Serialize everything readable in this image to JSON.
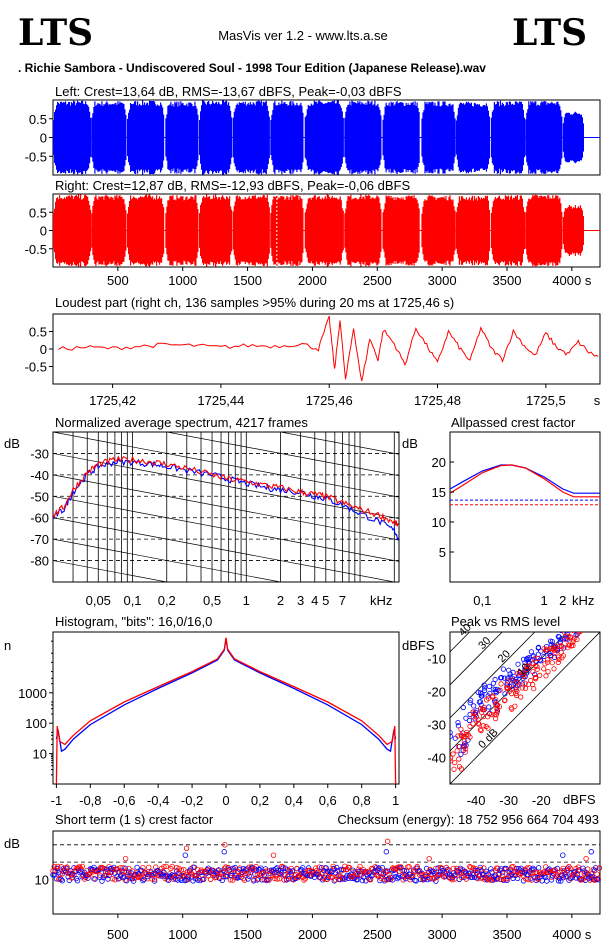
{
  "header": {
    "logo_left": "LTS",
    "logo_right": "LTS",
    "app_title": "MasVis ver 1.2 - www.lts.a.se",
    "file_name": ". Richie Sambora - Undiscovered Soul - 1998 Tour Edition (Japanese Release).wav"
  },
  "colors": {
    "left": "#0000ff",
    "right": "#ff0000",
    "axis": "#000000",
    "grid": "#000000",
    "bg": "#ffffff"
  },
  "chart_data": [
    {
      "id": "left_waveform",
      "type": "area",
      "title": "Left: Crest=13,64 dB, RMS=-13,67 dBFS, Peak=-0,03 dBFS",
      "y_ticks": [
        "0.5",
        "0",
        "-0.5"
      ],
      "ylim": [
        -1,
        1
      ],
      "xlim": [
        0,
        4217
      ],
      "color": "#0000ff",
      "song_segments_s": [
        [
          5,
          292
        ],
        [
          300,
          565
        ],
        [
          575,
          858
        ],
        [
          870,
          1120
        ],
        [
          1130,
          1378
        ],
        [
          1390,
          1672
        ],
        [
          1680,
          1934
        ],
        [
          1945,
          2238
        ],
        [
          2250,
          2530
        ],
        [
          2545,
          2830
        ],
        [
          2845,
          3102
        ],
        [
          3110,
          3370
        ],
        [
          3380,
          3635
        ],
        [
          3645,
          3925
        ],
        [
          3935,
          4090
        ]
      ],
      "segment_peak": [
        0.99,
        0.98,
        0.99,
        0.97,
        0.99,
        0.99,
        0.98,
        0.99,
        0.99,
        0.98,
        0.97,
        0.96,
        0.98,
        0.99,
        0.7
      ]
    },
    {
      "id": "right_waveform",
      "type": "area",
      "title": "Right: Crest=12,87 dB, RMS=-12,93 dBFS, Peak=-0,06 dBFS",
      "y_ticks": [
        "0.5",
        "0",
        "-0.5"
      ],
      "ylim": [
        -1,
        1
      ],
      "xlim": [
        0,
        4217
      ],
      "color": "#ff0000",
      "marker_s": 1725.46,
      "x_ticks": [
        "500",
        "1000",
        "1500",
        "2000",
        "2500",
        "3000",
        "3500",
        "4000 s"
      ],
      "x_tick_values": [
        500,
        1000,
        1500,
        2000,
        2500,
        3000,
        3500,
        4000
      ]
    },
    {
      "id": "loudest_part",
      "type": "line",
      "title": "Loudest part (right ch, 136 samples >95% during 20 ms at 1725,46 s)",
      "y_ticks": [
        "0.5",
        "0",
        "-0.5"
      ],
      "ylim": [
        -1,
        1
      ],
      "xlim": [
        1725.409,
        1725.51
      ],
      "x_ticks": [
        "1725,42",
        "1725,44",
        "1725,46",
        "1725,48",
        "1725,5",
        "s"
      ],
      "x_tick_values": [
        1725.42,
        1725.44,
        1725.46,
        1725.48,
        1725.5
      ],
      "color": "#ff0000",
      "x": [
        1725.41,
        1725.415,
        1725.42,
        1725.425,
        1725.43,
        1725.435,
        1725.44,
        1725.445,
        1725.45,
        1725.455,
        1725.458,
        1725.46,
        1725.461,
        1725.462,
        1725.463,
        1725.4645,
        1725.466,
        1725.4675,
        1725.469,
        1725.47,
        1725.472,
        1725.474,
        1725.476,
        1725.478,
        1725.48,
        1725.482,
        1725.484,
        1725.486,
        1725.488,
        1725.49,
        1725.492,
        1725.494,
        1725.496,
        1725.498,
        1725.5,
        1725.502,
        1725.504,
        1725.506,
        1725.508,
        1725.51
      ],
      "y": [
        0.0,
        0.05,
        0.02,
        0.08,
        0.12,
        0.1,
        0.05,
        0.1,
        0.08,
        0.15,
        0.0,
        0.9,
        -0.6,
        0.85,
        -0.9,
        0.6,
        -0.95,
        0.3,
        -0.3,
        0.55,
        0.15,
        -0.45,
        0.6,
        0.1,
        -0.4,
        0.5,
        0.05,
        -0.35,
        0.6,
        0.0,
        -0.3,
        0.5,
        0.1,
        -0.2,
        0.45,
        0.05,
        -0.15,
        0.2,
        -0.1,
        -0.25
      ]
    },
    {
      "id": "avg_spectrum",
      "type": "line",
      "title": "Normalized average spectrum, 4217 frames",
      "ylabel": "dB",
      "xlabel": "kHz",
      "y_ticks": [
        "-30",
        "-40",
        "-50",
        "-60",
        "-70",
        "-80"
      ],
      "y_tick_values": [
        -30,
        -40,
        -50,
        -60,
        -70,
        -80
      ],
      "ylim": [
        -90,
        -20
      ],
      "x_scale": "log",
      "xlim": [
        0.02,
        22
      ],
      "x_ticks": [
        "0,05",
        "0,1",
        "0,2",
        "0,5",
        "1",
        "2",
        "3",
        "4",
        "5",
        "7"
      ],
      "x_tick_values": [
        0.05,
        0.1,
        0.2,
        0.5,
        1,
        2,
        3,
        4,
        5,
        7
      ],
      "series": [
        {
          "color": "#0000ff",
          "x": [
            0.02,
            0.025,
            0.03,
            0.04,
            0.05,
            0.07,
            0.1,
            0.15,
            0.2,
            0.3,
            0.5,
            0.7,
            1,
            1.5,
            2,
            3,
            4,
            5,
            7,
            10,
            15,
            20,
            22
          ],
          "y": [
            -60,
            -56,
            -48,
            -40,
            -36,
            -34,
            -34,
            -35,
            -36,
            -38,
            -40,
            -42,
            -44,
            -46,
            -47,
            -48,
            -50,
            -51,
            -54,
            -58,
            -62,
            -66,
            -70
          ]
        },
        {
          "color": "#ff0000",
          "x": [
            0.02,
            0.025,
            0.03,
            0.04,
            0.05,
            0.07,
            0.1,
            0.15,
            0.2,
            0.3,
            0.5,
            0.7,
            1,
            1.5,
            2,
            3,
            4,
            5,
            7,
            10,
            15,
            20,
            22
          ],
          "y": [
            -59,
            -55,
            -47,
            -39,
            -35,
            -33,
            -33,
            -34,
            -35,
            -37,
            -40,
            -42,
            -43,
            -45,
            -46,
            -48,
            -49,
            -50,
            -53,
            -56,
            -59,
            -62,
            -64
          ]
        }
      ]
    },
    {
      "id": "allpassed_crest",
      "type": "line",
      "title": "Allpassed crest factor",
      "ylabel": "dB",
      "xlabel": "kHz",
      "y_ticks": [
        "20",
        "15",
        "10",
        "5"
      ],
      "y_tick_values": [
        20,
        15,
        10,
        5
      ],
      "ylim": [
        0,
        25
      ],
      "x_scale": "log",
      "xlim": [
        0.03,
        8
      ],
      "x_ticks": [
        "0,1",
        "1",
        "2"
      ],
      "x_tick_values": [
        0.1,
        1,
        2
      ],
      "reference_lines": [
        {
          "color": "#0000ff",
          "value": 13.64
        },
        {
          "color": "#ff0000",
          "value": 12.87
        }
      ],
      "series": [
        {
          "color": "#0000ff",
          "x": [
            0.03,
            0.05,
            0.1,
            0.2,
            0.3,
            0.5,
            1,
            2,
            3,
            5,
            8
          ],
          "y": [
            15.5,
            16.8,
            18.5,
            19.5,
            19.5,
            19,
            17.5,
            15.5,
            14.8,
            14.8,
            14.8
          ]
        },
        {
          "color": "#ff0000",
          "x": [
            0.03,
            0.05,
            0.1,
            0.2,
            0.3,
            0.5,
            1,
            2,
            3,
            5,
            8
          ],
          "y": [
            14.8,
            16.2,
            18.2,
            19.4,
            19.5,
            19,
            17.2,
            15,
            14.2,
            14.2,
            14.2
          ]
        }
      ]
    },
    {
      "id": "histogram",
      "type": "line",
      "title": "Histogram, \"bits\": 16,0/16,0",
      "ylabel": "n",
      "y_scale": "log",
      "y_ticks": [
        "1000",
        "100",
        "10"
      ],
      "y_tick_values": [
        1000,
        100,
        10
      ],
      "ylim": [
        1,
        100000
      ],
      "xlim": [
        -1.02,
        1.02
      ],
      "x_ticks": [
        "-1",
        "-0,8",
        "-0,6",
        "-0,4",
        "-0,2",
        "0",
        "0,2",
        "0,4",
        "0,6",
        "0,8",
        "1"
      ],
      "x_tick_values": [
        -1,
        -0.8,
        -0.6,
        -0.4,
        -0.2,
        0,
        0.2,
        0.4,
        0.6,
        0.8,
        1
      ],
      "series": [
        {
          "color": "#0000ff",
          "x": [
            -1,
            -0.99,
            -0.97,
            -0.95,
            -0.9,
            -0.8,
            -0.6,
            -0.4,
            -0.2,
            -0.05,
            -0.01,
            0,
            0.01,
            0.05,
            0.2,
            0.4,
            0.6,
            0.8,
            0.9,
            0.95,
            0.97,
            0.99,
            1
          ],
          "y": [
            30,
            60,
            12,
            14,
            30,
            90,
            400,
            1400,
            4500,
            12000,
            25000,
            60000,
            25000,
            12000,
            4500,
            1400,
            400,
            90,
            30,
            14,
            12,
            60,
            30
          ]
        },
        {
          "color": "#ff0000",
          "x": [
            -1,
            -0.995,
            -0.98,
            -0.95,
            -0.9,
            -0.8,
            -0.6,
            -0.4,
            -0.2,
            -0.05,
            -0.01,
            0,
            0.01,
            0.05,
            0.2,
            0.4,
            0.6,
            0.8,
            0.9,
            0.95,
            0.98,
            0.995,
            1
          ],
          "y": [
            1,
            80,
            25,
            20,
            40,
            120,
            500,
            1600,
            5000,
            13000,
            27000,
            65000,
            27000,
            13000,
            5000,
            1600,
            500,
            120,
            40,
            20,
            25,
            80,
            1
          ]
        }
      ]
    },
    {
      "id": "peak_vs_rms",
      "type": "scatter",
      "title": "Peak vs RMS level",
      "ylabel": "dBFS",
      "xlabel": "dBFS",
      "x_ticks": [
        "-40",
        "-30",
        "-20"
      ],
      "x_tick_values": [
        -40,
        -30,
        -20
      ],
      "y_ticks": [
        "-10",
        "-20",
        "-30",
        "-40"
      ],
      "y_tick_values": [
        -10,
        -20,
        -30,
        -40
      ],
      "xlim": [
        -48,
        -2
      ],
      "ylim": [
        -48,
        -2
      ],
      "diagonal_labels": [
        "40",
        "30",
        "20",
        "10",
        "0 dB"
      ],
      "diagonal_offsets": [
        40,
        30,
        20,
        10,
        0
      ],
      "series": [
        {
          "color": "#0000ff",
          "x": [
            -46,
            -44,
            -42,
            -40,
            -38,
            -36,
            -34,
            -32,
            -30,
            -28,
            -26,
            -24,
            -22,
            -20,
            -18,
            -16,
            -14,
            -12,
            -10,
            -45,
            -41,
            -37,
            -33,
            -29,
            -25,
            -21,
            -17,
            -13,
            -43,
            -39,
            -35,
            -31,
            -27,
            -23,
            -19,
            -15
          ],
          "y": [
            -34,
            -30,
            -26,
            -22,
            -20,
            -19,
            -18,
            -17,
            -15,
            -14,
            -12,
            -11,
            -9,
            -8,
            -6,
            -5,
            -4,
            -2,
            -1,
            -38,
            -28,
            -23,
            -21,
            -17,
            -14,
            -11,
            -8,
            -5,
            -36,
            -25,
            -25,
            -19,
            -16,
            -13,
            -9,
            -6
          ]
        },
        {
          "color": "#ff0000",
          "x": [
            -47,
            -45,
            -43,
            -41,
            -39,
            -37,
            -35,
            -33,
            -31,
            -29,
            -27,
            -25,
            -23,
            -21,
            -19,
            -17,
            -15,
            -13,
            -11,
            -9,
            -46,
            -42,
            -38,
            -34,
            -30,
            -26,
            -22,
            -18,
            -14,
            -10,
            -44,
            -40,
            -36,
            -32,
            -28,
            -24,
            -20,
            -16,
            -12
          ],
          "y": [
            -40,
            -35,
            -32,
            -28,
            -26,
            -24,
            -23,
            -21,
            -19,
            -18,
            -16,
            -14,
            -13,
            -11,
            -9,
            -8,
            -6,
            -5,
            -3,
            -2,
            -42,
            -33,
            -30,
            -27,
            -24,
            -20,
            -17,
            -13,
            -9,
            -4,
            -37,
            -31,
            -27,
            -25,
            -21,
            -18,
            -14,
            -10,
            -7
          ]
        }
      ]
    },
    {
      "id": "short_term_crest",
      "type": "scatter",
      "title": "Short term (1 s) crest factor",
      "checksum_label": "Checksum (energy):  18 752 956 664 704 493",
      "ylabel": "dB",
      "y_ticks": [
        "10"
      ],
      "y_tick_values": [
        10
      ],
      "ylim": [
        0,
        24
      ],
      "dashed_lines": [
        20,
        15
      ],
      "xlim": [
        0,
        4217
      ],
      "x_ticks": [
        "500",
        "1000",
        "1500",
        "2000",
        "2500",
        "3000",
        "3500",
        "4000 s"
      ],
      "x_tick_values": [
        500,
        1000,
        1500,
        2000,
        2500,
        3000,
        3500,
        4000
      ],
      "spikes": [
        {
          "x": 1020,
          "y": 17,
          "color": "#0000ff"
        },
        {
          "x": 1030,
          "y": 19,
          "color": "#ff0000"
        },
        {
          "x": 1320,
          "y": 18,
          "color": "#0000ff"
        },
        {
          "x": 1325,
          "y": 20,
          "color": "#ff0000"
        },
        {
          "x": 560,
          "y": 16,
          "color": "#ff0000"
        },
        {
          "x": 1700,
          "y": 17,
          "color": "#ff0000"
        },
        {
          "x": 2580,
          "y": 21,
          "color": "#ff0000"
        },
        {
          "x": 2570,
          "y": 18,
          "color": "#0000ff"
        },
        {
          "x": 2900,
          "y": 16,
          "color": "#ff0000"
        },
        {
          "x": 3930,
          "y": 17,
          "color": "#0000ff"
        },
        {
          "x": 4110,
          "y": 16,
          "color": "#ff0000"
        },
        {
          "x": 4150,
          "y": 18,
          "color": "#0000ff"
        }
      ]
    }
  ]
}
